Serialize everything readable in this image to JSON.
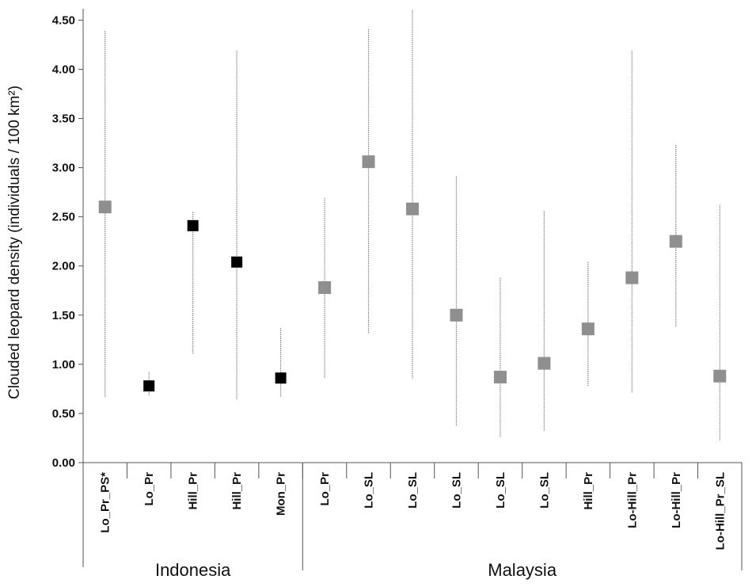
{
  "chart_data": {
    "type": "scatter",
    "ylabel": "Clouded leopard density (individuals / 100 km²)",
    "ylim": [
      0,
      4.6
    ],
    "yticks": [
      "0.00",
      "0.50",
      "1.00",
      "1.50",
      "2.00",
      "2.50",
      "3.00",
      "3.50",
      "4.00",
      "4.50"
    ],
    "ytick_values": [
      0,
      0.5,
      1.0,
      1.5,
      2.0,
      2.5,
      3.0,
      3.5,
      4.0,
      4.5
    ],
    "grid": false,
    "groups": [
      {
        "name": "Indonesia",
        "count": 5
      },
      {
        "name": "Malaysia",
        "count": 10
      }
    ],
    "categories": [
      "Lo_Pr_PS*",
      "Lo_Pr",
      "Hill_Pr",
      "Hill_Pr",
      "Mon_Pr",
      "Lo_Pr",
      "Lo_SL",
      "Lo_SL",
      "Lo_SL",
      "Lo_SL",
      "Lo_SL",
      "Hill_Pr",
      "Lo-Hill_Pr",
      "Lo-Hill_Pr",
      "Lo-Hill_Pr_SL"
    ],
    "values": [
      2.6,
      0.78,
      2.41,
      2.04,
      0.86,
      1.78,
      3.06,
      2.58,
      1.5,
      0.87,
      1.01,
      1.36,
      1.88,
      2.25,
      0.88
    ],
    "lower": [
      0.67,
      0.68,
      1.1,
      0.64,
      0.67,
      0.86,
      1.31,
      0.85,
      0.37,
      0.26,
      0.32,
      0.78,
      0.71,
      1.38,
      0.22
    ],
    "upper": [
      4.39,
      0.92,
      2.55,
      4.19,
      1.37,
      2.69,
      4.41,
      4.6,
      2.91,
      1.88,
      2.56,
      2.04,
      4.19,
      3.23,
      2.62
    ],
    "marker_colors": [
      "#8f8f8f",
      "#000000",
      "#000000",
      "#000000",
      "#000000",
      "#8f8f8f",
      "#8f8f8f",
      "#8f8f8f",
      "#8f8f8f",
      "#8f8f8f",
      "#8f8f8f",
      "#8f8f8f",
      "#8f8f8f",
      "#8f8f8f",
      "#8f8f8f"
    ],
    "errorbar_color": "#888888",
    "axis_color": "#555555"
  }
}
